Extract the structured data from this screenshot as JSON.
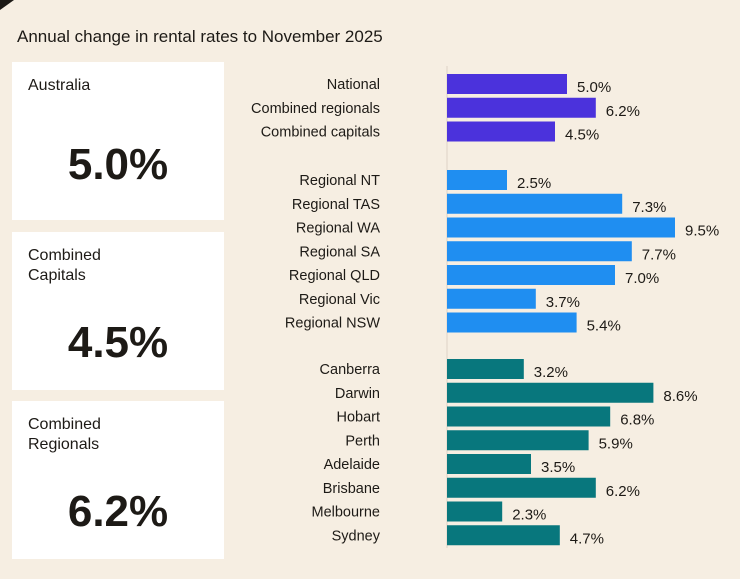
{
  "title": "Annual change in rental rates to November 2025",
  "cards": [
    {
      "label": "Australia",
      "value": "5.0%"
    },
    {
      "label": "Combined Capitals",
      "value": "4.5%"
    },
    {
      "label": "Combined Regionals",
      "value": "6.2%"
    }
  ],
  "chart_data": {
    "type": "bar",
    "orientation": "horizontal",
    "title": "Annual change in rental rates to November 2025",
    "unit": "%",
    "colors": {
      "national": "#4b32dc",
      "regional": "#1f8ef1",
      "capital": "#08777d"
    },
    "groups": [
      {
        "color_key": "national",
        "categories": [
          "National",
          "Combined regionals",
          "Combined capitals"
        ],
        "values": [
          5.0,
          6.2,
          4.5
        ]
      },
      {
        "color_key": "regional",
        "categories": [
          "Regional NT",
          "Regional TAS",
          "Regional WA",
          "Regional SA",
          "Regional QLD",
          "Regional Vic",
          "Regional NSW"
        ],
        "values": [
          2.5,
          7.3,
          9.5,
          7.7,
          7.0,
          3.7,
          5.4
        ]
      },
      {
        "color_key": "capital",
        "categories": [
          "Canberra",
          "Darwin",
          "Hobart",
          "Perth",
          "Adelaide",
          "Brisbane",
          "Melbourne",
          "Sydney"
        ],
        "values": [
          3.2,
          8.6,
          6.8,
          5.9,
          3.5,
          6.2,
          2.3,
          4.7
        ]
      }
    ]
  }
}
